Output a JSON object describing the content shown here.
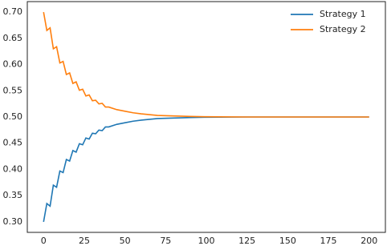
{
  "chart_data": {
    "type": "line",
    "x": [
      0,
      2,
      4,
      6,
      8,
      10,
      12,
      14,
      16,
      18,
      20,
      22,
      24,
      26,
      28,
      30,
      32,
      34,
      36,
      38,
      40,
      45,
      50,
      55,
      60,
      70,
      80,
      90,
      100,
      125,
      150,
      175,
      200
    ],
    "series": [
      {
        "name": "Strategy 1",
        "color": "#1f77b4",
        "values": [
          0.3,
          0.335,
          0.33,
          0.37,
          0.366,
          0.397,
          0.394,
          0.419,
          0.416,
          0.436,
          0.433,
          0.449,
          0.447,
          0.46,
          0.458,
          0.469,
          0.468,
          0.475,
          0.474,
          0.481,
          0.481,
          0.486,
          0.489,
          0.492,
          0.494,
          0.497,
          0.498,
          0.499,
          0.4995,
          0.5,
          0.5,
          0.5,
          0.5
        ]
      },
      {
        "name": "Strategy 2",
        "color": "#ff7f0e",
        "values": [
          0.7,
          0.665,
          0.67,
          0.63,
          0.634,
          0.603,
          0.606,
          0.581,
          0.584,
          0.564,
          0.567,
          0.551,
          0.553,
          0.54,
          0.542,
          0.531,
          0.532,
          0.525,
          0.526,
          0.519,
          0.519,
          0.514,
          0.511,
          0.508,
          0.506,
          0.503,
          0.502,
          0.501,
          0.5005,
          0.5,
          0.5,
          0.5,
          0.5
        ]
      }
    ],
    "xlim": [
      -10,
      210
    ],
    "ylim": [
      0.28,
      0.72
    ],
    "xticks": [
      0,
      25,
      50,
      75,
      100,
      125,
      150,
      175,
      200
    ],
    "yticks": [
      {
        "value": 0.3,
        "label": "0.30"
      },
      {
        "value": 0.35,
        "label": "0.35"
      },
      {
        "value": 0.4,
        "label": "0.40"
      },
      {
        "value": 0.45,
        "label": "0.45"
      },
      {
        "value": 0.5,
        "label": "0.50"
      },
      {
        "value": 0.55,
        "label": "0.55"
      },
      {
        "value": 0.6,
        "label": "0.60"
      },
      {
        "value": 0.65,
        "label": "0.65"
      },
      {
        "value": 0.7,
        "label": "0.70"
      }
    ],
    "grid": false,
    "legend": "upper right"
  }
}
